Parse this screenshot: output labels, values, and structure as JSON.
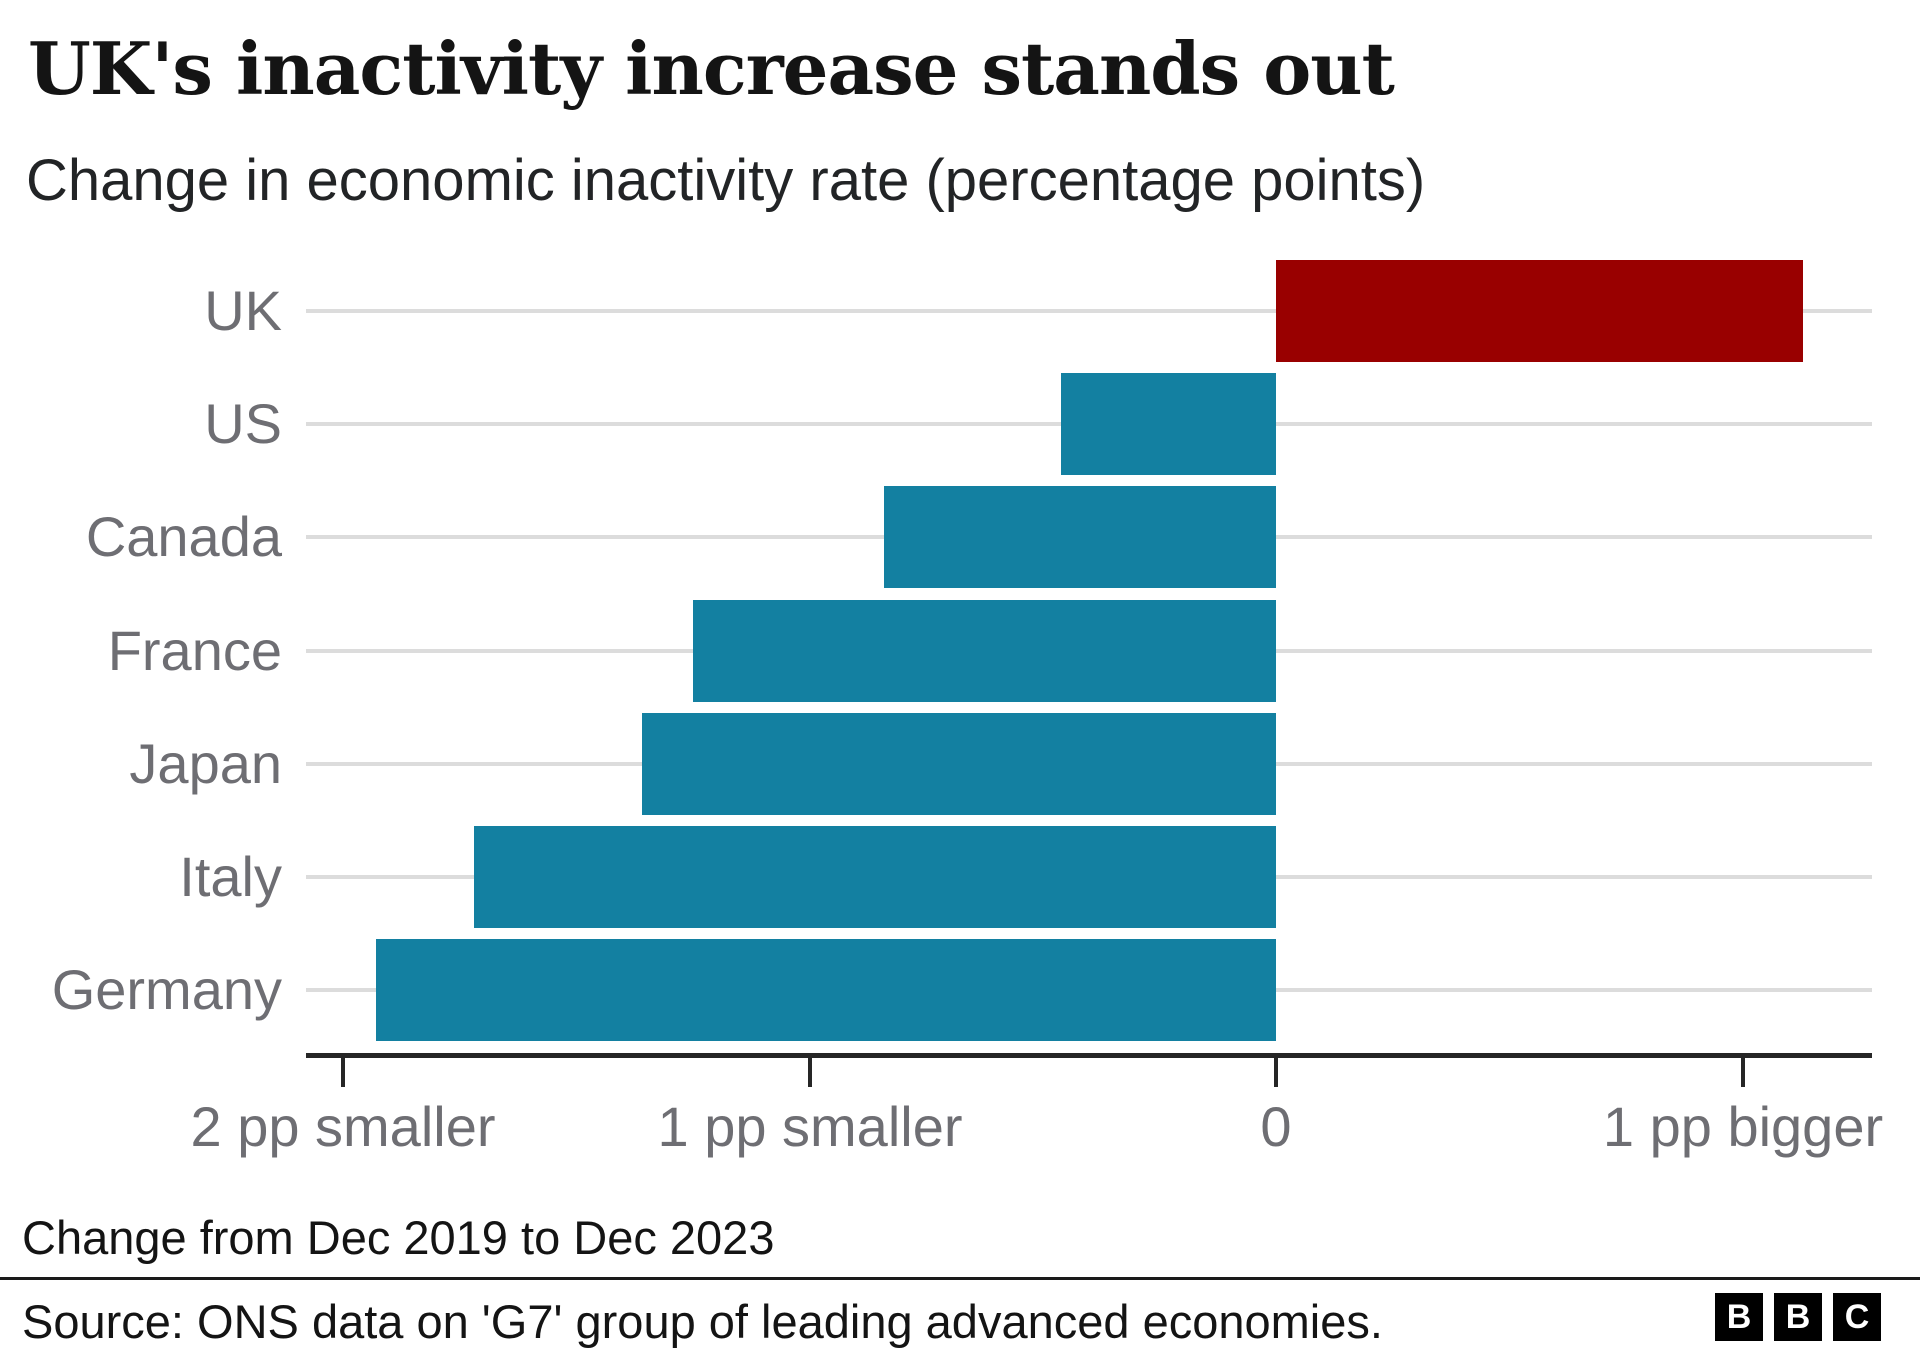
{
  "chart_data": {
    "type": "bar",
    "orientation": "horizontal",
    "title": "UK's inactivity increase stands out",
    "subtitle": "Change in economic inactivity rate (percentage points)",
    "categories": [
      "UK",
      "US",
      "Canada",
      "France",
      "Japan",
      "Italy",
      "Germany"
    ],
    "values": [
      1.13,
      -0.46,
      -0.84,
      -1.25,
      -1.36,
      -1.72,
      -1.93
    ],
    "unit": "percentage points",
    "highlight_category": "UK",
    "xlabel": "",
    "ylabel": "",
    "xlim": [
      -2.08,
      1.28
    ],
    "x_ticks": [
      {
        "value": -2,
        "label": "2 pp smaller"
      },
      {
        "value": -1,
        "label": "1 pp smaller"
      },
      {
        "value": 0,
        "label": "0"
      },
      {
        "value": 1,
        "label": "1 pp bigger"
      }
    ],
    "grid": "one horizontal gridline per category row, drawn behind bars",
    "legend": "none"
  },
  "footer": {
    "note": "Change from Dec 2019 to Dec 2023",
    "source": "Source: ONS data on 'G7' group of leading advanced economies.",
    "logo_letters": [
      "B",
      "B",
      "C"
    ]
  },
  "colors": {
    "bar_default": "#1380a1",
    "bar_highlight": "#990000",
    "axis": "#262626",
    "gridline": "#dcdcdc",
    "label_gray": "#6e6e73",
    "text_dark": "#141414",
    "background": "#ffffff"
  }
}
